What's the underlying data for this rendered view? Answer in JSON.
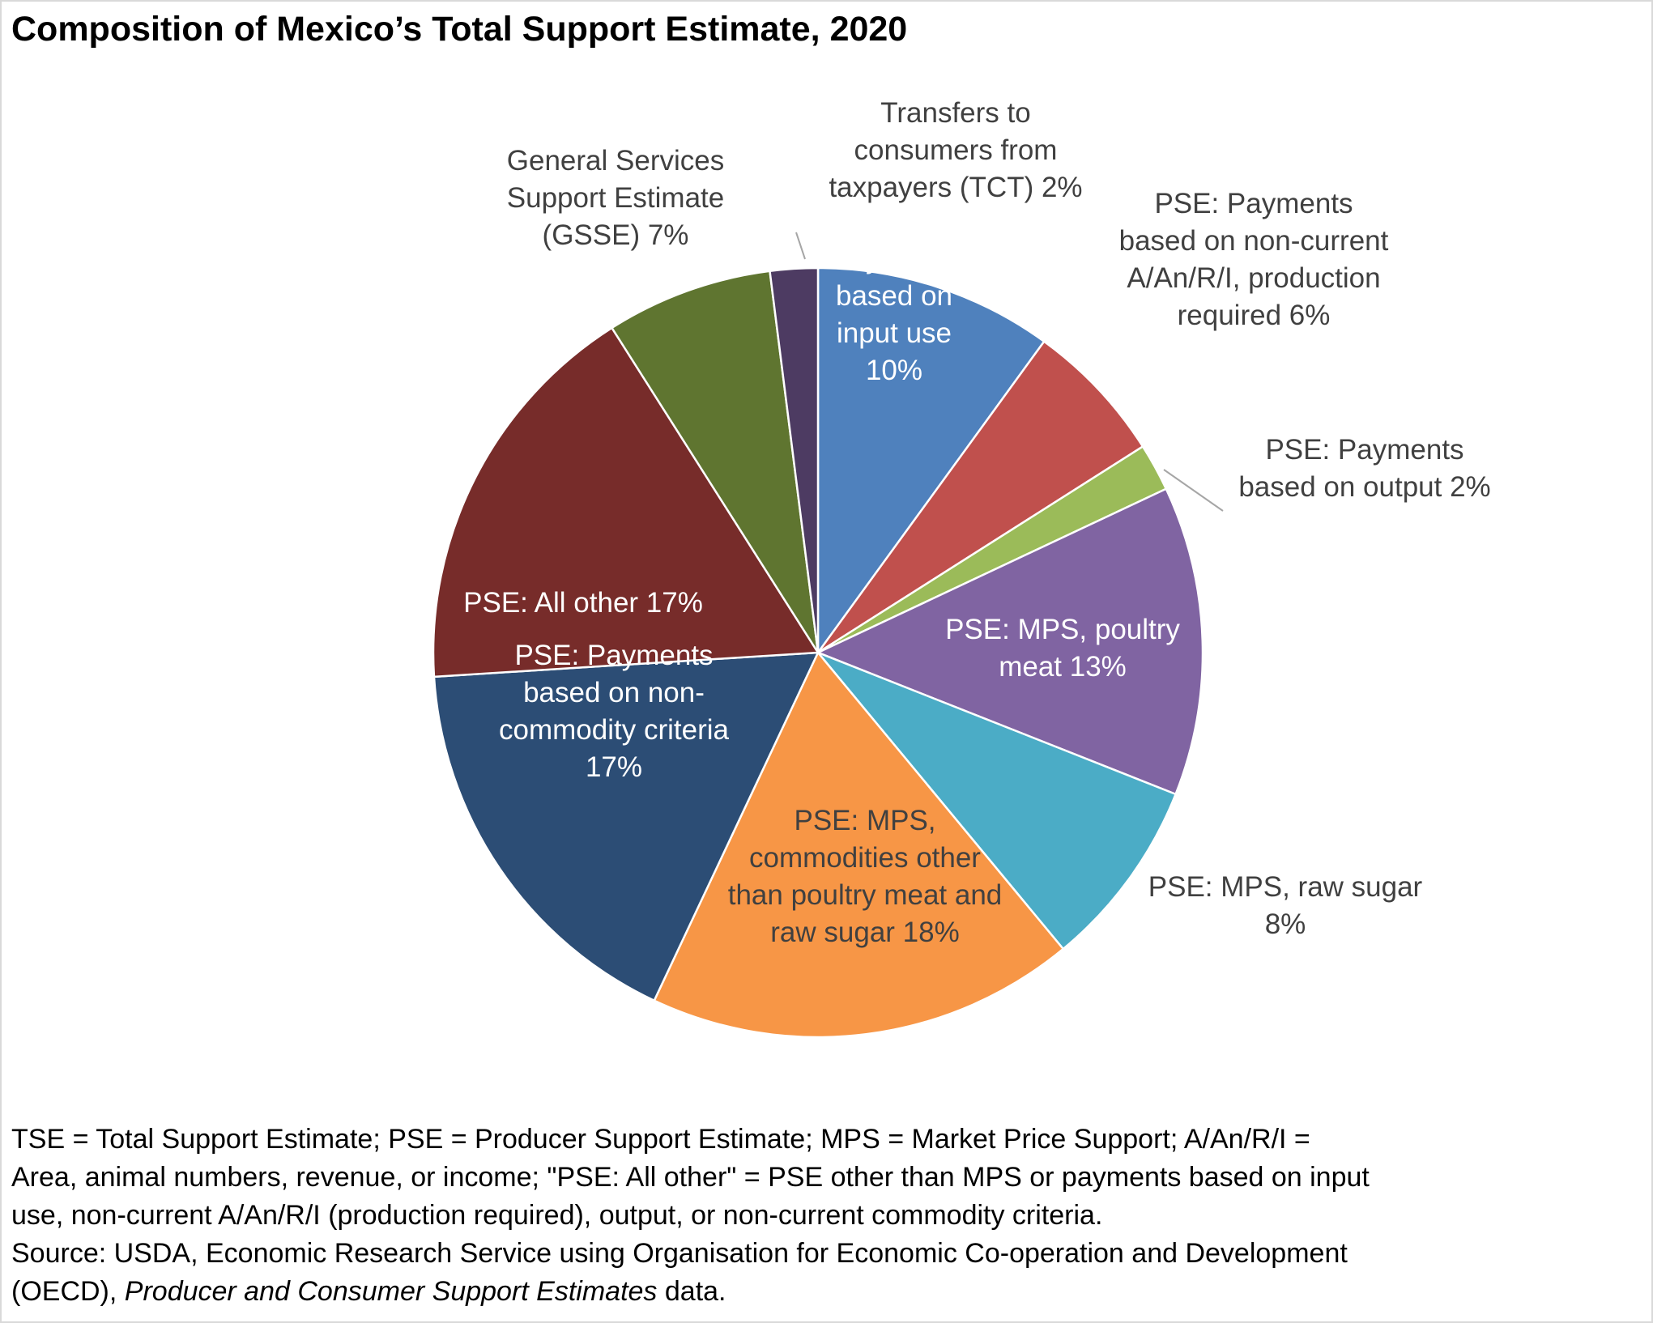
{
  "title": "Composition of Mexico’s Total Support Estimate, 2020",
  "chart_data": {
    "type": "pie",
    "title": "Composition of Mexico’s Total Support Estimate, 2020",
    "start_angle_deg": 0,
    "direction": "clockwise",
    "slices": [
      {
        "label": "PSE: Payments based on input use",
        "value": 10,
        "display": "PSE: Payments based on input use 10%",
        "color": "#4F81BD"
      },
      {
        "label": "PSE: Payments based on non-current A/An/R/I, production required",
        "value": 6,
        "display": "PSE: Payments based on non-current A/An/R/I, production required 6%",
        "color": "#C0504D"
      },
      {
        "label": "PSE: Payments based on output",
        "value": 2,
        "display": "PSE: Payments based on output 2%",
        "color": "#9BBB59"
      },
      {
        "label": "PSE: MPS, poultry meat",
        "value": 13,
        "display": "PSE: MPS, poultry meat 13%",
        "color": "#8064A2"
      },
      {
        "label": "PSE: MPS, raw sugar",
        "value": 8,
        "display": "PSE: MPS, raw sugar 8%",
        "color": "#4BACC6"
      },
      {
        "label": "PSE: MPS, commodities other than poultry meat and raw sugar",
        "value": 18,
        "display": "PSE: MPS, commodities other than poultry meat and raw sugar 18%",
        "color": "#F79646"
      },
      {
        "label": "PSE: Payments based on non-commodity criteria",
        "value": 17,
        "display": "PSE: Payments based on non-commodity criteria 17%",
        "color": "#2C4D75"
      },
      {
        "label": "PSE: All other",
        "value": 17,
        "display": "PSE: All other 17%",
        "color": "#772C2A"
      },
      {
        "label": "General Services Support Estimate (GSSE)",
        "value": 7,
        "display": "General Services Support Estimate (GSSE) 7%",
        "color": "#5F7530"
      },
      {
        "label": "Transfers to consumers from taxpayers (TCT)",
        "value": 2,
        "display": "Transfers to consumers from taxpayers (TCT) 2%",
        "color": "#4D3B62"
      }
    ]
  },
  "notes": [
    "TSE = Total Support Estimate; PSE = Producer Support Estimate; MPS = Market Price Support; A/An/R/I =",
    "Area, animal numbers, revenue, or income; \"PSE: All other\" = PSE other than MPS or payments based on input",
    "use, non-current A/An/R/I (production required), output, or non-current commodity criteria."
  ],
  "source": {
    "line1": "Source: USDA, Economic Research Service using Organisation for Economic Co-operation and Development",
    "line2_prefix": "(OECD), ",
    "line2_italic": "Producer and Consumer Support Estimates",
    "line2_suffix": " data."
  }
}
